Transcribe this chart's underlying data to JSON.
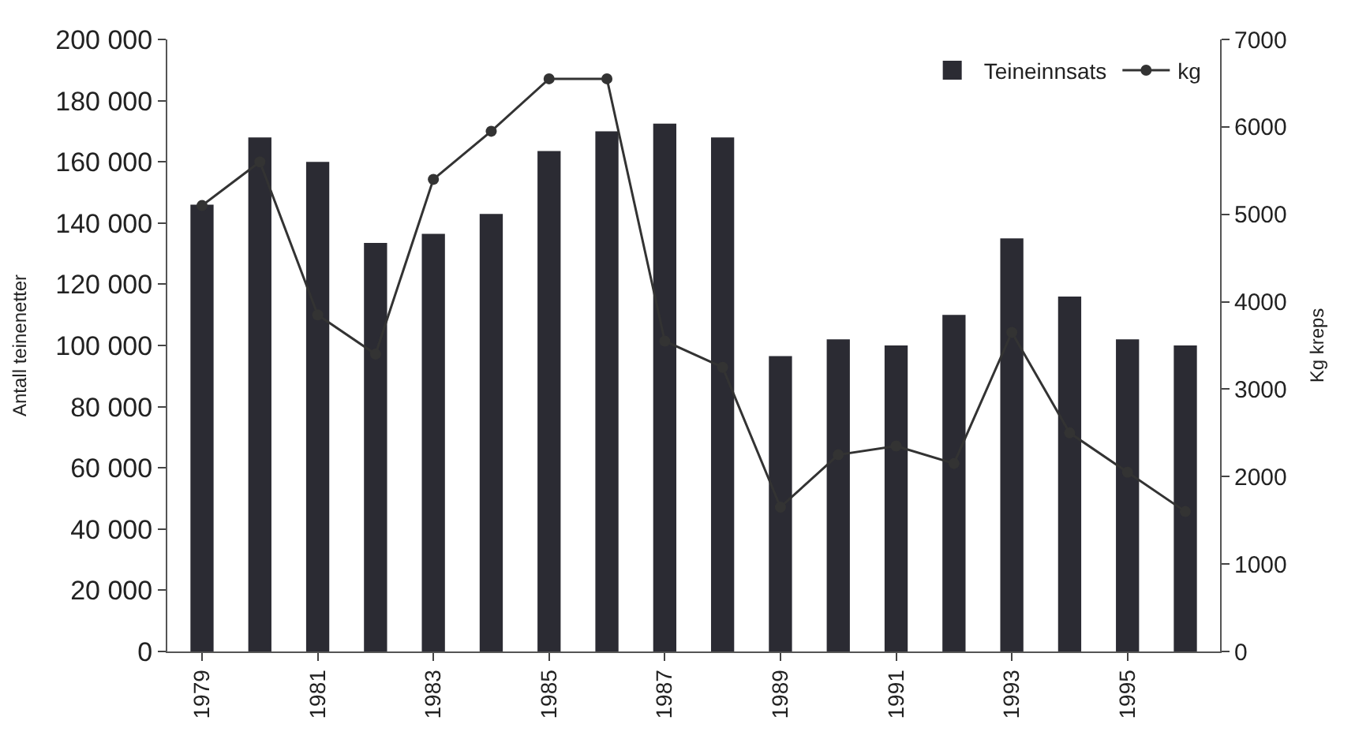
{
  "chart_data": {
    "type": "bar",
    "ylabel": "Antall teinenetter",
    "y2label": "Kg kreps",
    "categories": [
      "1979",
      null,
      "1981",
      null,
      "1983",
      null,
      "1985",
      null,
      "1987",
      null,
      "1989",
      null,
      "1991",
      null,
      "1993",
      null,
      "1995",
      null
    ],
    "series": [
      {
        "name": "Teineinnsats",
        "color": "#2b2b33",
        "values": [
          146000,
          168000,
          160000,
          133500,
          136500,
          143000,
          163500,
          170000,
          172500,
          168000,
          96500,
          102000,
          100000,
          110000,
          135000,
          116000,
          102000,
          100000
        ]
      },
      {
        "name": "kg",
        "type": "line",
        "axis": "y2",
        "color": "#333333",
        "marker": "circle",
        "line_style": "solid",
        "values": [
          5100,
          5600,
          3850,
          3400,
          5400,
          5950,
          6550,
          6550,
          3550,
          3250,
          1650,
          2250,
          2350,
          2150,
          3650,
          2500,
          2050,
          1600
        ]
      }
    ],
    "ylim": [
      0,
      200000
    ],
    "yticks": [
      0,
      {
        "value": 20000,
        "label": "20 000"
      },
      {
        "value": 40000,
        "label": "40 000"
      },
      {
        "value": 60000,
        "label": "60 000"
      },
      {
        "value": 80000,
        "label": "80 000"
      },
      {
        "value": 100000,
        "label": "100 000"
      },
      {
        "value": 120000,
        "label": "120 000"
      },
      {
        "value": 140000,
        "label": "140 000"
      },
      {
        "value": 160000,
        "label": "160 000"
      },
      {
        "value": 180000,
        "label": "180 000"
      },
      {
        "value": 200000,
        "label": "200 000"
      }
    ],
    "y2lim": [
      0,
      7000
    ],
    "y2ticks": [
      0,
      1000,
      2000,
      3000,
      4000,
      5000,
      6000,
      7000
    ],
    "legend": "top right"
  }
}
